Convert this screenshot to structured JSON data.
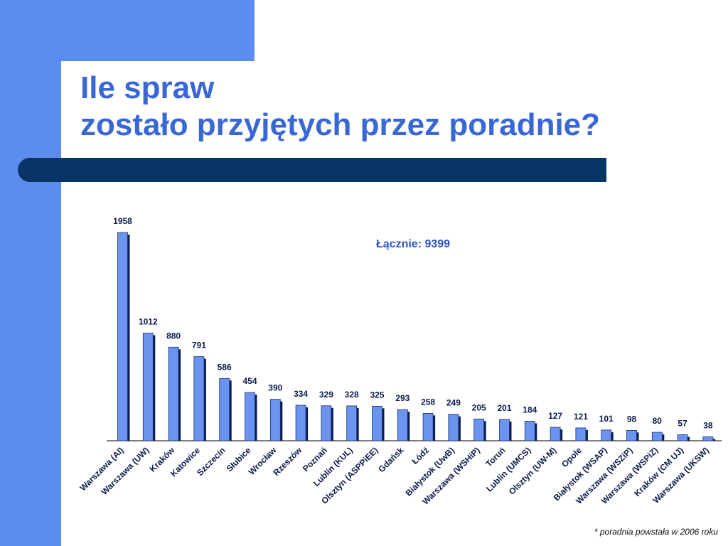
{
  "slide": {
    "title_line1": "Ile spraw",
    "title_line2": "zostało przyjętych przez poradnie?",
    "total_label": "Łącznie: 9399",
    "footnote": "* poradnia powstała w 2006 roku"
  },
  "colors": {
    "accent_blue": "#5b8def",
    "title_blue": "#3a67d6",
    "dark_navy": "#073566",
    "bar_fill": "#6a94f0",
    "bar_shadow": "#0a1e55"
  },
  "chart_data": {
    "type": "bar",
    "categories": [
      "Warszawa (AI)",
      "Warszawa (UW)",
      "Kraków",
      "Katowice",
      "Szczecin",
      "Słubice",
      "Wrocław",
      "Rzeszów",
      "Poznań",
      "Lublin (KUL)",
      "Olsztyn (ASPPiEE)",
      "Gdańsk",
      "Łódź",
      "Białystok (UwB)",
      "Warszawa (WSHiP)",
      "Toruń",
      "Lublin (UMCS)",
      "Olsztyn (UW-M)",
      "Opole",
      "Białystok (WSAP)",
      "Warszawa (WSZiP)",
      "Warszawa (WSPiZ)",
      "Kraków (CM UJ)",
      "Warszawa (UKSW)"
    ],
    "values": [
      1958,
      1012,
      880,
      791,
      586,
      454,
      390,
      334,
      329,
      328,
      325,
      293,
      258,
      249,
      205,
      201,
      184,
      127,
      121,
      101,
      98,
      80,
      57,
      38
    ],
    "value_labels": [
      "1958",
      "1012",
      "880",
      "791",
      "586",
      "454",
      "390",
      "334",
      "329",
      "328",
      "325",
      "293",
      "258",
      "249",
      "205",
      "201",
      "184",
      "127",
      "121",
      "101",
      "98",
      "80",
      "57",
      "38"
    ],
    "title": "",
    "xlabel": "",
    "ylabel": "",
    "ylim": [
      0,
      1958
    ],
    "grid": false,
    "legend": "none",
    "annotation": "Łącznie: 9399"
  }
}
